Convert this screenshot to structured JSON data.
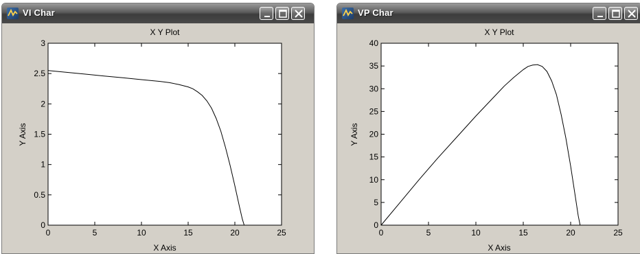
{
  "windows": [
    {
      "title": "VI Char",
      "plot_title": "X Y Plot",
      "xlabel": "X Axis",
      "ylabel": "Y Axis"
    },
    {
      "title": "VP Char",
      "plot_title": "X Y Plot",
      "xlabel": "X Axis",
      "ylabel": "Y Axis"
    }
  ],
  "colors": {
    "titlebar": "#4a4a4a",
    "window_bg": "#d4d0c8",
    "plot_bg": "#ffffff",
    "line": "#000000"
  },
  "chart_data": [
    {
      "type": "line",
      "title": "X Y Plot",
      "xlabel": "X Axis",
      "ylabel": "Y Axis",
      "xlim": [
        0,
        25
      ],
      "ylim": [
        0,
        3
      ],
      "xticks": [
        0,
        5,
        10,
        15,
        20,
        25
      ],
      "yticks": [
        0,
        0.5,
        1,
        1.5,
        2,
        2.5,
        3
      ],
      "ytick_labels": [
        "0",
        "0.5",
        "1",
        "1.5",
        "2",
        "2.5",
        "3"
      ],
      "grid": false,
      "series": [
        {
          "x": [
            0,
            2,
            4,
            6,
            8,
            10,
            12,
            13,
            14,
            15,
            15.5,
            16,
            16.5,
            17,
            17.5,
            18,
            18.5,
            19,
            19.5,
            20,
            20.5,
            20.8,
            21
          ],
          "y": [
            2.55,
            2.52,
            2.49,
            2.46,
            2.43,
            2.4,
            2.37,
            2.35,
            2.32,
            2.28,
            2.25,
            2.2,
            2.14,
            2.05,
            1.93,
            1.76,
            1.55,
            1.28,
            0.98,
            0.65,
            0.3,
            0.1,
            0
          ]
        }
      ]
    },
    {
      "type": "line",
      "title": "X Y Plot",
      "xlabel": "X Axis",
      "ylabel": "Y Axis",
      "xlim": [
        0,
        25
      ],
      "ylim": [
        0,
        40
      ],
      "xticks": [
        0,
        5,
        10,
        15,
        20,
        25
      ],
      "yticks": [
        0,
        5,
        10,
        15,
        20,
        25,
        30,
        35,
        40
      ],
      "ytick_labels": [
        "0",
        "5",
        "10",
        "15",
        "20",
        "25",
        "30",
        "35",
        "40"
      ],
      "grid": false,
      "series": [
        {
          "x": [
            0,
            2,
            4,
            6,
            8,
            10,
            12,
            13,
            14,
            15,
            15.5,
            16,
            16.5,
            17,
            17.5,
            18,
            18.5,
            19,
            19.5,
            20,
            20.5,
            20.8,
            21
          ],
          "y": [
            0,
            5.0,
            10.0,
            14.8,
            19.4,
            24.0,
            28.4,
            30.6,
            32.5,
            34.2,
            34.9,
            35.2,
            35.3,
            34.9,
            33.8,
            31.7,
            28.7,
            24.3,
            19.1,
            13.0,
            6.2,
            2.1,
            0
          ]
        }
      ]
    }
  ]
}
